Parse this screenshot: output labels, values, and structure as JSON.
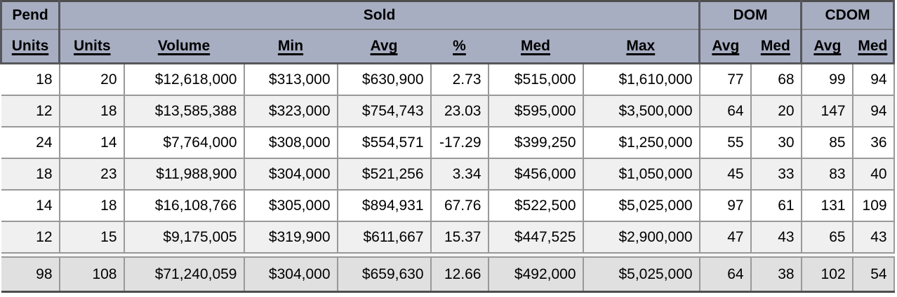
{
  "table": {
    "group_headers": [
      {
        "label": "Pend",
        "colspan": 1
      },
      {
        "label": "Sold",
        "colspan": 7
      },
      {
        "label": "DOM",
        "colspan": 2
      },
      {
        "label": "CDOM",
        "colspan": 2
      }
    ],
    "column_headers": [
      "Units",
      "Units",
      "Volume",
      "Min",
      "Avg",
      "%",
      "Med",
      "Max",
      "Avg",
      "Med",
      "Avg",
      "Med"
    ],
    "rows": [
      [
        "18",
        "20",
        "$12,618,000",
        "$313,000",
        "$630,900",
        "2.73",
        "$515,000",
        "$1,610,000",
        "77",
        "68",
        "99",
        "94"
      ],
      [
        "12",
        "18",
        "$13,585,388",
        "$323,000",
        "$754,743",
        "23.03",
        "$595,000",
        "$3,500,000",
        "64",
        "20",
        "147",
        "94"
      ],
      [
        "24",
        "14",
        "$7,764,000",
        "$308,000",
        "$554,571",
        "-17.29",
        "$399,250",
        "$1,250,000",
        "55",
        "30",
        "85",
        "36"
      ],
      [
        "18",
        "23",
        "$11,988,900",
        "$304,000",
        "$521,256",
        "3.34",
        "$456,000",
        "$1,050,000",
        "45",
        "33",
        "83",
        "40"
      ],
      [
        "14",
        "18",
        "$16,108,766",
        "$305,000",
        "$894,931",
        "67.76",
        "$522,500",
        "$5,025,000",
        "97",
        "61",
        "131",
        "109"
      ],
      [
        "12",
        "15",
        "$9,175,005",
        "$319,900",
        "$611,667",
        "15.37",
        "$447,525",
        "$2,900,000",
        "47",
        "43",
        "65",
        "43"
      ]
    ],
    "totals": [
      "98",
      "108",
      "$71,240,059",
      "$304,000",
      "$659,630",
      "12.66",
      "$492,000",
      "$5,025,000",
      "64",
      "38",
      "102",
      "54"
    ]
  },
  "colors": {
    "header_bg": "#a8aec2",
    "grid": "#999999",
    "dark_border": "#4d4d4d",
    "row_even": "#f0f0f0",
    "totals_bg": "#e0e0e0",
    "text": "#000000"
  }
}
